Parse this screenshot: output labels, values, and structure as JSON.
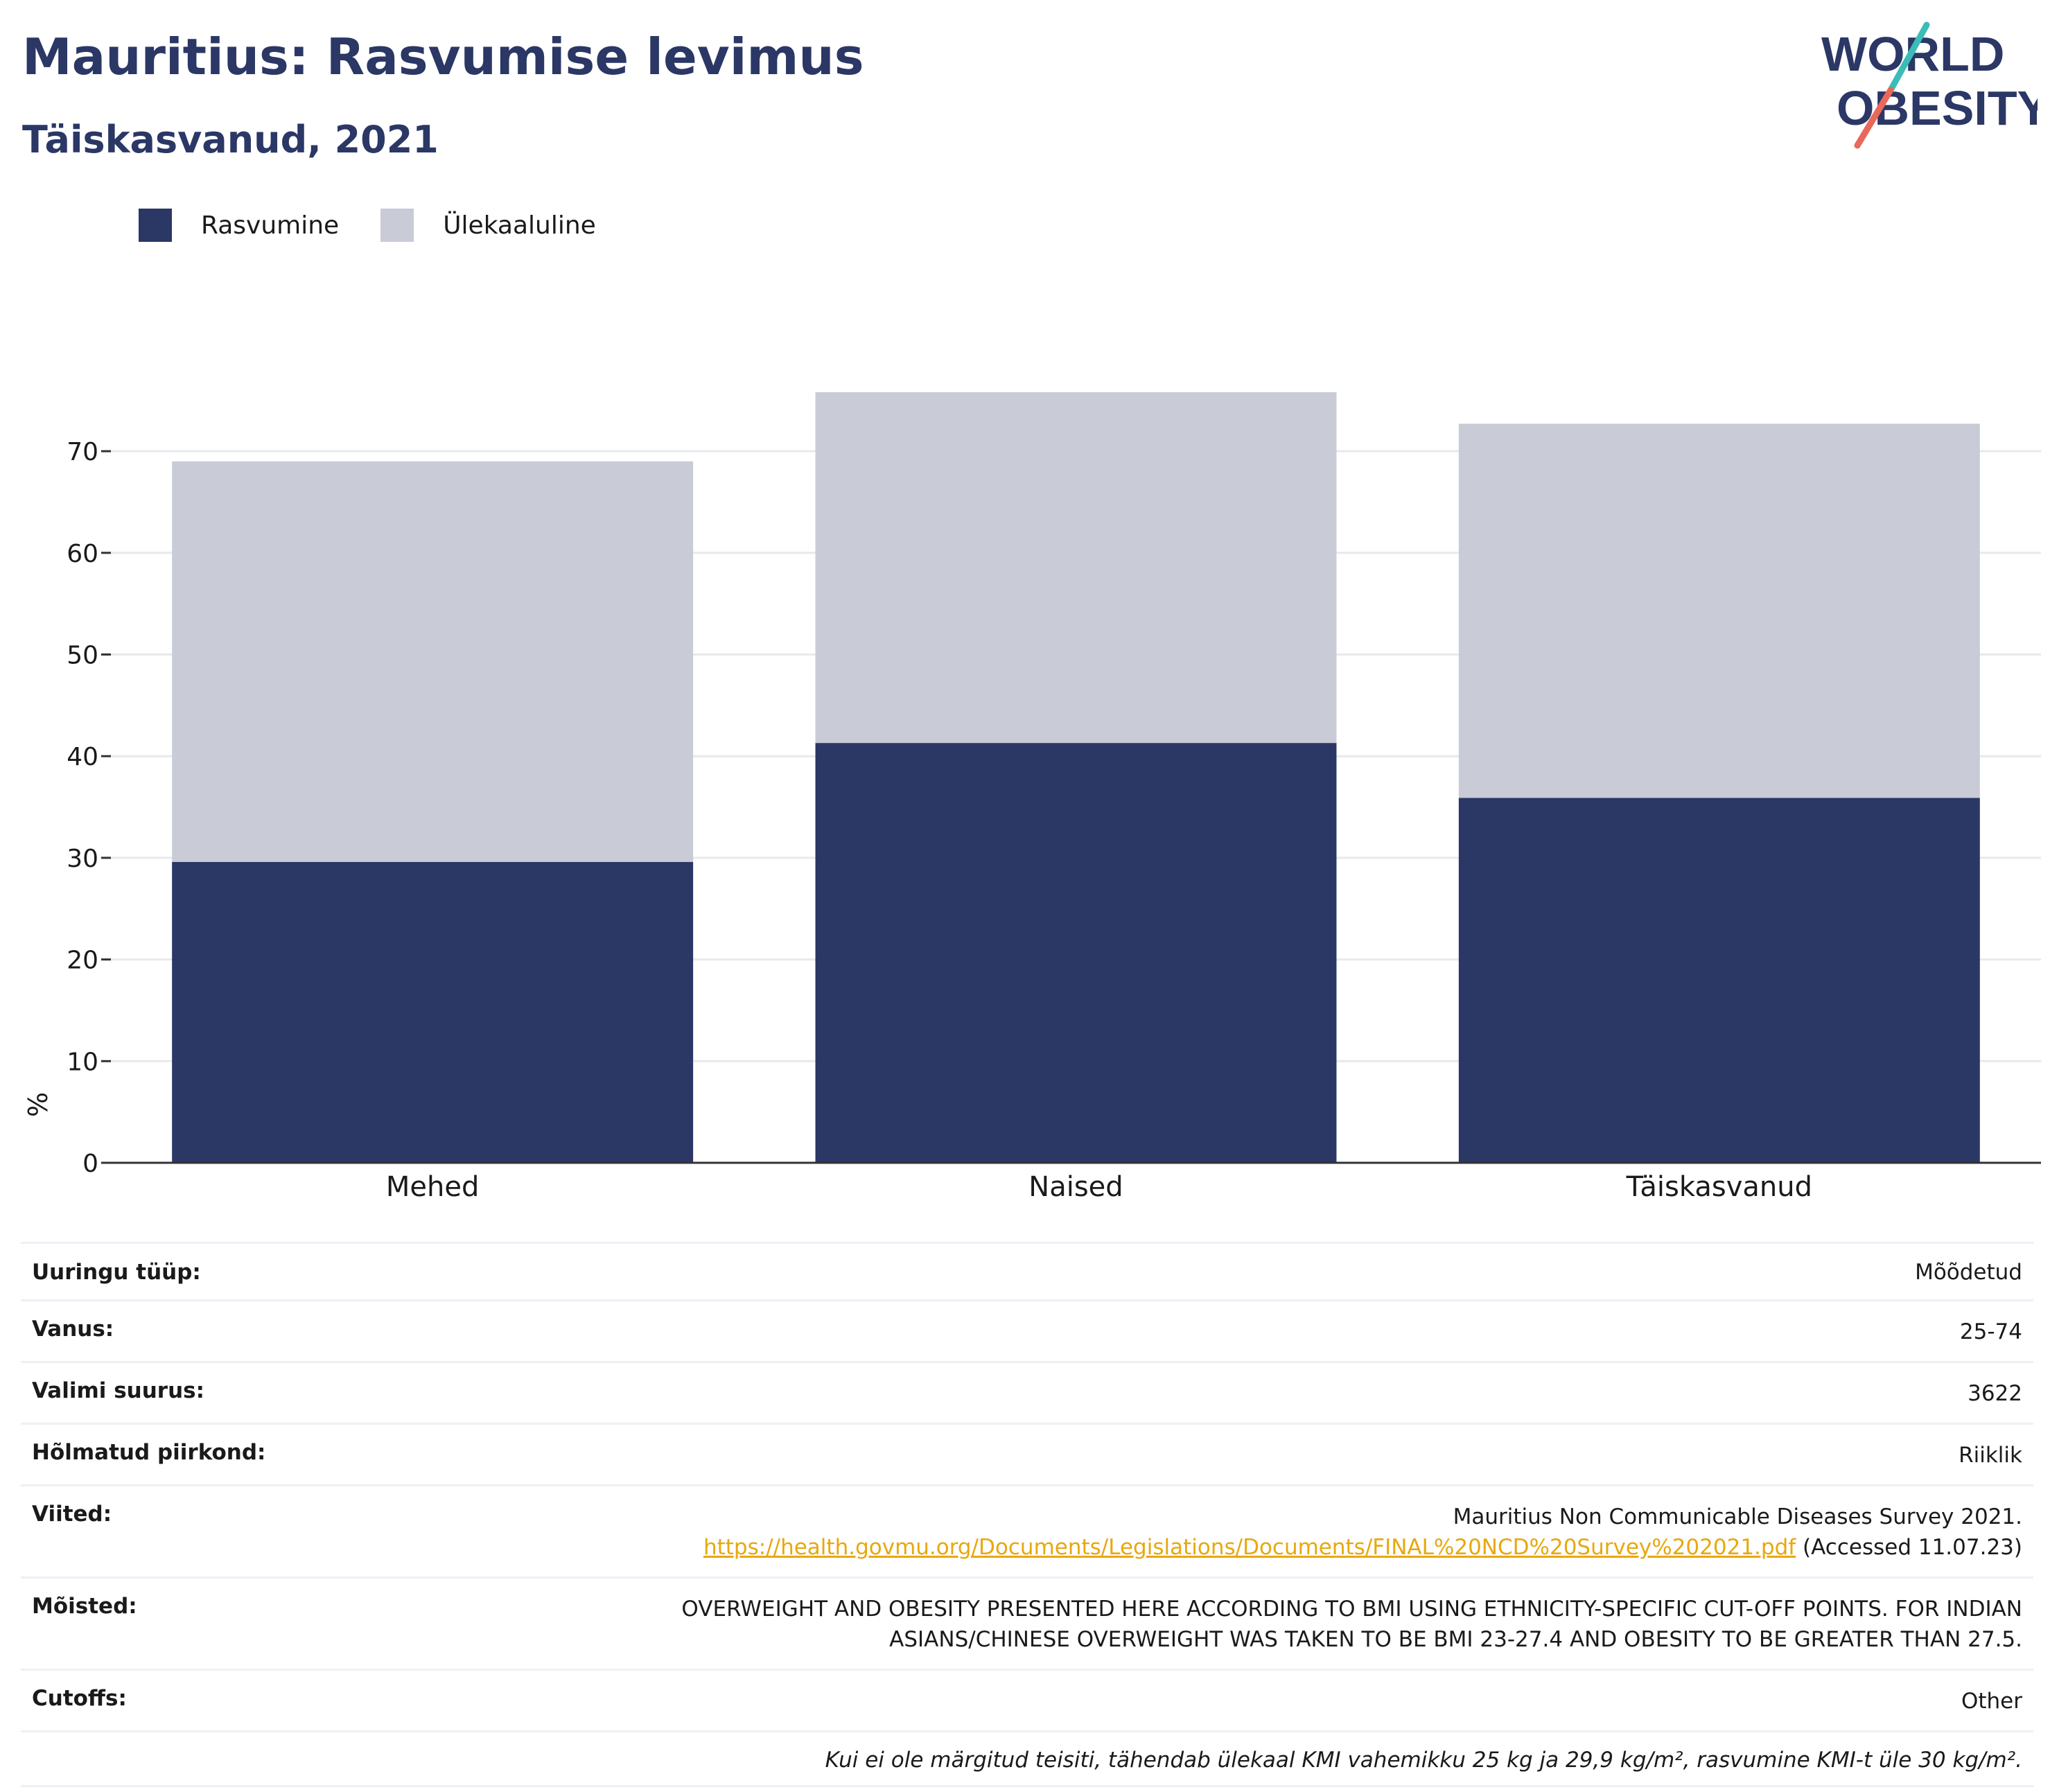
{
  "title": "Mauritius: Rasvumise levimus",
  "subtitle": "Täiskasvanud, 2021",
  "logo": {
    "line1": "WORLD",
    "line2": "OBESITY"
  },
  "colors": {
    "obesity": "#2b3765",
    "overweight": "#c9cbd7",
    "text_dark": "#2b3765",
    "link": "#e8a80c",
    "logo_teal": "#3bbcb7",
    "logo_red": "#e8685a"
  },
  "legend": {
    "obesity": "Rasvumine",
    "overweight": "Ülekaaluline"
  },
  "chart_data": {
    "type": "bar",
    "stacked": true,
    "categories": [
      "Mehed",
      "Naised",
      "Täiskasvanud"
    ],
    "series": [
      {
        "name": "Rasvumine",
        "values": [
          29.6,
          41.3,
          35.9
        ]
      },
      {
        "name": "Ülekaaluline",
        "values": [
          39.4,
          34.5,
          36.8
        ]
      }
    ],
    "ylabel": "%",
    "xlabel": "",
    "ylim": [
      0,
      80
    ],
    "yticks": [
      0,
      10,
      20,
      30,
      40,
      50,
      60,
      70
    ],
    "grid": true,
    "legend_position": "top-left"
  },
  "info": [
    {
      "label": "Uuringu tüüp:",
      "value": "Mõõdetud"
    },
    {
      "label": "Vanus:",
      "value": "25-74"
    },
    {
      "label": "Valimi suurus:",
      "value": "3622"
    },
    {
      "label": "Hõlmatud piirkond:",
      "value": "Riiklik"
    }
  ],
  "references": {
    "label": "Viited:",
    "line1": "Mauritius Non Communicable Diseases Survey 2021.",
    "url": "https://health.govmu.org/Documents/Legislations/Documents/FINAL%20NCD%20Survey%202021.pdf",
    "accessed": " (Accessed 11.07.23)"
  },
  "definitions": {
    "label": "Mõisted:",
    "line1": "OVERWEIGHT AND OBESITY PRESENTED HERE ACCORDING TO BMI USING ETHNICITY-SPECIFIC CUT-OFF POINTS. FOR INDIAN",
    "line2": "ASIANS/CHINESE OVERWEIGHT WAS TAKEN TO BE BMI 23-27.4 AND OBESITY TO BE GREATER THAN 27.5."
  },
  "cutoffs": {
    "label": "Cutoffs:",
    "value": "Other"
  },
  "note": "Kui ei ole märgitud teisiti, tähendab ülekaal KMI vahemikku 25 kg ja 29,9 kg/m², rasvumine KMI-t üle 30 kg/m²."
}
